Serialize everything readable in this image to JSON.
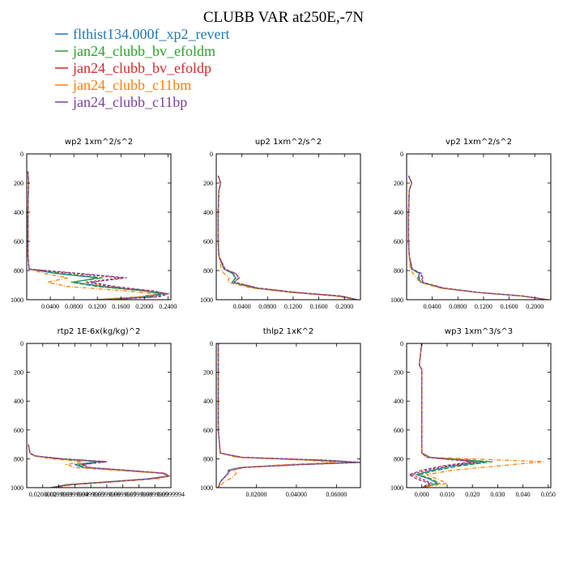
{
  "figure": {
    "title": "CLUBB VAR at250E,-7N"
  },
  "legend": [
    {
      "name": "flthist134.000f_xp2_revert",
      "color": "#1f77b4"
    },
    {
      "name": "jan24_clubb_bv_efoldm",
      "color": "#2ca02c"
    },
    {
      "name": "jan24_clubb_bv_efoldp",
      "color": "#d62728"
    },
    {
      "name": "jan24_clubb_c11bm",
      "color": "#ff7f0e"
    },
    {
      "name": "jan24_clubb_c11bp",
      "color": "#7b3f9e"
    }
  ],
  "chart_data": [
    {
      "type": "line",
      "title": "wp2   1xm^2/s^2",
      "ylim": [
        1000,
        0
      ],
      "xlim": [
        0,
        0.245
      ],
      "yticks": [
        "0",
        "200",
        "400",
        "600",
        "800",
        "1000"
      ],
      "xticks": [
        "0.0400",
        "0.0800",
        "0.1200",
        "0.1600",
        "0.2000",
        "0.2400"
      ],
      "xtick_values": [
        0.04,
        0.08,
        0.12,
        0.16,
        0.2,
        0.24
      ],
      "y": [
        120,
        200,
        400,
        600,
        700,
        790,
        820,
        850,
        880,
        910,
        940,
        960,
        980,
        1000
      ],
      "series": [
        {
          "name": "flthist134.000f_xp2_revert",
          "values": [
            0.002,
            0.003,
            0.002,
            0.002,
            0.002,
            0.004,
            0.05,
            0.12,
            0.08,
            0.13,
            0.2,
            0.23,
            0.2,
            0.12
          ]
        },
        {
          "name": "jan24_clubb_bv_efoldm",
          "values": [
            0.002,
            0.003,
            0.002,
            0.002,
            0.002,
            0.004,
            0.06,
            0.13,
            0.075,
            0.12,
            0.2,
            0.235,
            0.21,
            0.13
          ]
        },
        {
          "name": "jan24_clubb_bv_efoldp",
          "values": [
            0.002,
            0.003,
            0.002,
            0.002,
            0.002,
            0.004,
            0.08,
            0.16,
            0.1,
            0.14,
            0.21,
            0.24,
            0.22,
            0.14
          ]
        },
        {
          "name": "jan24_clubb_c11bm",
          "values": [
            0.002,
            0.003,
            0.002,
            0.002,
            0.002,
            0.004,
            0.03,
            0.07,
            0.035,
            0.07,
            0.17,
            0.22,
            0.19,
            0.11
          ]
        },
        {
          "name": "jan24_clubb_c11bp",
          "values": [
            0.002,
            0.003,
            0.002,
            0.002,
            0.002,
            0.004,
            0.09,
            0.17,
            0.11,
            0.15,
            0.215,
            0.24,
            0.225,
            0.14
          ]
        }
      ]
    },
    {
      "type": "line",
      "title": "up2   1xm^2/s^2",
      "ylim": [
        1000,
        0
      ],
      "xlim": [
        0,
        0.225
      ],
      "yticks": [
        "0",
        "200",
        "400",
        "600",
        "800",
        "1000"
      ],
      "xticks": [
        "0.0400",
        "0.0800",
        "0.1200",
        "0.1600",
        "0.2000"
      ],
      "xtick_values": [
        0.04,
        0.08,
        0.12,
        0.16,
        0.2
      ],
      "y": [
        150,
        200,
        250,
        400,
        600,
        700,
        790,
        820,
        850,
        880,
        920,
        950,
        975,
        1000
      ],
      "series": [
        {
          "name": "flthist134.000f_xp2_revert",
          "values": [
            0.003,
            0.007,
            0.004,
            0.003,
            0.003,
            0.004,
            0.012,
            0.025,
            0.03,
            0.025,
            0.06,
            0.12,
            0.19,
            0.22
          ]
        },
        {
          "name": "jan24_clubb_bv_efoldm",
          "values": [
            0.003,
            0.007,
            0.004,
            0.003,
            0.003,
            0.004,
            0.012,
            0.026,
            0.031,
            0.025,
            0.06,
            0.12,
            0.19,
            0.22
          ]
        },
        {
          "name": "jan24_clubb_bv_efoldp",
          "values": [
            0.003,
            0.007,
            0.004,
            0.003,
            0.003,
            0.004,
            0.013,
            0.03,
            0.035,
            0.028,
            0.065,
            0.125,
            0.195,
            0.22
          ]
        },
        {
          "name": "jan24_clubb_c11bm",
          "values": [
            0.003,
            0.007,
            0.004,
            0.003,
            0.003,
            0.004,
            0.008,
            0.012,
            0.02,
            0.018,
            0.055,
            0.115,
            0.185,
            0.22
          ]
        },
        {
          "name": "jan24_clubb_c11bp",
          "values": [
            0.003,
            0.007,
            0.004,
            0.003,
            0.003,
            0.004,
            0.014,
            0.03,
            0.036,
            0.028,
            0.065,
            0.125,
            0.195,
            0.22
          ]
        }
      ]
    },
    {
      "type": "line",
      "title": "vp2   1xm^2/s^2",
      "ylim": [
        1000,
        0
      ],
      "xlim": [
        0,
        0.225
      ],
      "yticks": [
        "0",
        "200",
        "400",
        "600",
        "800",
        "1000"
      ],
      "xticks": [
        "0.0400",
        "0.0800",
        "0.1200",
        "0.1600",
        "0.2000"
      ],
      "xtick_values": [
        0.04,
        0.08,
        0.12,
        0.16,
        0.2
      ],
      "y": [
        150,
        200,
        250,
        400,
        600,
        700,
        790,
        820,
        850,
        880,
        920,
        950,
        975,
        1000
      ],
      "series": [
        {
          "name": "flthist134.000f_xp2_revert",
          "values": [
            0.003,
            0.008,
            0.004,
            0.003,
            0.003,
            0.004,
            0.008,
            0.02,
            0.018,
            0.022,
            0.055,
            0.11,
            0.18,
            0.22
          ]
        },
        {
          "name": "jan24_clubb_bv_efoldm",
          "values": [
            0.003,
            0.008,
            0.004,
            0.003,
            0.003,
            0.004,
            0.008,
            0.019,
            0.02,
            0.022,
            0.055,
            0.11,
            0.18,
            0.22
          ]
        },
        {
          "name": "jan24_clubb_bv_efoldp",
          "values": [
            0.003,
            0.008,
            0.004,
            0.003,
            0.003,
            0.004,
            0.009,
            0.022,
            0.024,
            0.024,
            0.057,
            0.112,
            0.182,
            0.22
          ]
        },
        {
          "name": "jan24_clubb_c11bm",
          "values": [
            0.003,
            0.008,
            0.004,
            0.003,
            0.003,
            0.004,
            0.006,
            0.01,
            0.016,
            0.02,
            0.052,
            0.108,
            0.178,
            0.22
          ]
        },
        {
          "name": "jan24_clubb_c11bp",
          "values": [
            0.003,
            0.008,
            0.004,
            0.003,
            0.003,
            0.004,
            0.009,
            0.023,
            0.025,
            0.025,
            0.058,
            0.113,
            0.183,
            0.22
          ]
        }
      ]
    },
    {
      "type": "line",
      "title": "rtp2   1E-6x(kg/kg)^2",
      "ylim": [
        1000,
        0
      ],
      "xlim": [
        0.00999,
        0.0999995
      ],
      "yticks": [
        "0",
        "200",
        "400",
        "600",
        "800",
        "1000"
      ],
      "xticks": [
        "0.0200000",
        "0.0299999",
        "0.0399999",
        "0.0499999",
        "0.0599999",
        "0.0699999",
        "0.0799999",
        "0.0899999",
        "0.0999994"
      ],
      "xtick_values": [
        0.02,
        0.0299999,
        0.0399999,
        0.0499999,
        0.0599999,
        0.0699999,
        0.0799999,
        0.0899999,
        0.0999994
      ],
      "y": [
        700,
        760,
        780,
        800,
        820,
        840,
        860,
        880,
        900,
        920,
        940,
        960,
        980,
        1000
      ],
      "series": [
        {
          "name": "flthist134.000f_xp2_revert",
          "values": [
            0.011,
            0.012,
            0.015,
            0.03,
            0.055,
            0.04,
            0.045,
            0.07,
            0.095,
            0.098,
            0.085,
            0.06,
            0.035,
            0.025
          ]
        },
        {
          "name": "jan24_clubb_bv_efoldm",
          "values": [
            0.011,
            0.012,
            0.015,
            0.03,
            0.058,
            0.042,
            0.046,
            0.07,
            0.095,
            0.099,
            0.086,
            0.06,
            0.035,
            0.025
          ]
        },
        {
          "name": "jan24_clubb_bv_efoldp",
          "values": [
            0.011,
            0.012,
            0.015,
            0.032,
            0.06,
            0.044,
            0.048,
            0.072,
            0.096,
            0.099,
            0.086,
            0.062,
            0.036,
            0.026
          ]
        },
        {
          "name": "jan24_clubb_c11bm",
          "values": [
            0.011,
            0.012,
            0.014,
            0.025,
            0.045,
            0.035,
            0.04,
            0.065,
            0.093,
            0.0995,
            0.09,
            0.065,
            0.04,
            0.028
          ]
        },
        {
          "name": "jan24_clubb_c11bp",
          "values": [
            0.011,
            0.012,
            0.015,
            0.032,
            0.06,
            0.045,
            0.049,
            0.073,
            0.096,
            0.099,
            0.086,
            0.062,
            0.036,
            0.026
          ]
        }
      ]
    },
    {
      "type": "line",
      "title": "thlp2   1xK^2",
      "ylim": [
        1000,
        0
      ],
      "xlim": [
        0,
        0.072
      ],
      "yticks": [
        "0",
        "200",
        "400",
        "600",
        "800",
        "1000"
      ],
      "xticks": [
        "0.02000",
        "0.04000",
        "0.06000"
      ],
      "xtick_values": [
        0.02,
        0.04,
        0.06
      ],
      "y": [
        0,
        200,
        400,
        600,
        760,
        790,
        810,
        825,
        840,
        860,
        880,
        900,
        930,
        960,
        1000
      ],
      "series": [
        {
          "name": "flthist134.000f_xp2_revert",
          "values": [
            0.001,
            0.001,
            0.001,
            0.001,
            0.002,
            0.012,
            0.05,
            0.07,
            0.04,
            0.012,
            0.006,
            0.006,
            0.004,
            0.002,
            0.001
          ]
        },
        {
          "name": "jan24_clubb_bv_efoldm",
          "values": [
            0.001,
            0.001,
            0.001,
            0.001,
            0.002,
            0.012,
            0.052,
            0.071,
            0.041,
            0.013,
            0.006,
            0.006,
            0.004,
            0.002,
            0.001
          ]
        },
        {
          "name": "jan24_clubb_bv_efoldp",
          "values": [
            0.001,
            0.001,
            0.001,
            0.001,
            0.002,
            0.013,
            0.055,
            0.072,
            0.043,
            0.014,
            0.007,
            0.006,
            0.004,
            0.002,
            0.001
          ]
        },
        {
          "name": "jan24_clubb_c11bm",
          "values": [
            0.001,
            0.001,
            0.001,
            0.001,
            0.002,
            0.01,
            0.045,
            0.06,
            0.035,
            0.012,
            0.009,
            0.01,
            0.008,
            0.004,
            0.001
          ]
        },
        {
          "name": "jan24_clubb_c11bp",
          "values": [
            0.001,
            0.001,
            0.001,
            0.001,
            0.002,
            0.013,
            0.055,
            0.072,
            0.043,
            0.014,
            0.006,
            0.006,
            0.004,
            0.002,
            0.001
          ]
        }
      ]
    },
    {
      "type": "line",
      "title": "wp3   1xm^3/s^3",
      "ylim": [
        1000,
        0
      ],
      "xlim": [
        -0.006,
        0.051
      ],
      "yticks": [
        "0",
        "200",
        "400",
        "600",
        "800",
        "1000"
      ],
      "xticks": [
        "0.000",
        "0.010",
        "0.020",
        "0.030",
        "0.040",
        "0.050"
      ],
      "xtick_values": [
        0.0,
        0.01,
        0.02,
        0.03,
        0.04,
        0.05
      ],
      "y": [
        0,
        150,
        180,
        400,
        600,
        760,
        790,
        820,
        850,
        880,
        910,
        940,
        970,
        1000
      ],
      "series": [
        {
          "name": "flthist134.000f_xp2_revert",
          "values": [
            0.0,
            -0.001,
            0.0,
            0.0,
            0.0,
            0.0,
            0.003,
            0.025,
            0.012,
            0.004,
            -0.002,
            0.003,
            0.006,
            0.0
          ]
        },
        {
          "name": "jan24_clubb_bv_efoldm",
          "values": [
            0.0,
            -0.001,
            0.0,
            0.0,
            0.0,
            0.0,
            0.003,
            0.028,
            0.015,
            0.006,
            -0.001,
            0.004,
            0.007,
            0.0
          ]
        },
        {
          "name": "jan24_clubb_bv_efoldp",
          "values": [
            0.0,
            -0.001,
            0.0,
            0.0,
            0.0,
            0.0,
            0.002,
            0.022,
            0.01,
            0.002,
            -0.004,
            0.0,
            0.004,
            0.0
          ]
        },
        {
          "name": "jan24_clubb_c11bm",
          "values": [
            0.0,
            -0.001,
            0.0,
            0.0,
            0.0,
            0.0,
            0.004,
            0.048,
            0.03,
            0.012,
            0.002,
            0.006,
            0.01,
            0.0
          ]
        },
        {
          "name": "jan24_clubb_c11bp",
          "values": [
            0.0,
            -0.001,
            0.0,
            0.0,
            0.0,
            0.0,
            0.002,
            0.02,
            0.008,
            0.0,
            -0.005,
            -0.002,
            0.003,
            0.0
          ]
        }
      ]
    }
  ]
}
